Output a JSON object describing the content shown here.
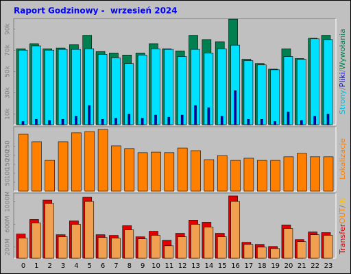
{
  "title": "Raport Godzinowy -  wrzesień 2024",
  "legend_separator": "/",
  "chart_data": [
    {
      "type": "bar",
      "ylim": [
        0,
        100000
      ],
      "yticks": [
        {
          "value": 10000,
          "label": "10k"
        },
        {
          "value": 30000,
          "label": "30k"
        },
        {
          "value": 50000,
          "label": "50k"
        },
        {
          "value": 70000,
          "label": "70k"
        },
        {
          "value": 90000,
          "label": "90k"
        }
      ],
      "series": [
        {
          "name": "Wywołania",
          "color": "#008050",
          "values": [
            71500,
            76200,
            71500,
            72200,
            75500,
            84100,
            68900,
            67500,
            65600,
            67500,
            76200,
            71500,
            69500,
            84100,
            80100,
            78100,
            99300,
            61600,
            57600,
            52300,
            71500,
            62300,
            81400,
            84100
          ]
        },
        {
          "name": "Pliki",
          "color": "#00e0ff",
          "values": [
            70200,
            74200,
            70200,
            70900,
            70900,
            71500,
            66200,
            62900,
            57600,
            65600,
            71500,
            70900,
            64200,
            70900,
            67500,
            71500,
            74800,
            60300,
            56300,
            51700,
            64200,
            61600,
            80800,
            80100
          ]
        },
        {
          "name": "Strony",
          "color": "#0000c0",
          "values": [
            3000,
            5000,
            4000,
            5000,
            8000,
            18000,
            5000,
            6000,
            10000,
            6000,
            9000,
            7000,
            9000,
            18000,
            16000,
            8000,
            32000,
            5000,
            5000,
            3000,
            12000,
            4000,
            8000,
            10000
          ]
        }
      ]
    },
    {
      "type": "bar",
      "ylim": [
        0,
        360
      ],
      "yticks": [
        50,
        100,
        150,
        200,
        250
      ],
      "series": [
        {
          "name": "Lokalizacje",
          "color": "#ff8000",
          "values": [
            318,
            276,
            172,
            276,
            326,
            333,
            345,
            253,
            238,
            215,
            218,
            215,
            241,
            226,
            176,
            199,
            172,
            184,
            172,
            172,
            192,
            211,
            192,
            192
          ]
        }
      ]
    },
    {
      "type": "bar",
      "ylim": [
        0,
        1150
      ],
      "yticks": [
        {
          "value": 200,
          "label": "200M"
        },
        {
          "value": 600,
          "label": "600M"
        },
        {
          "value": 1000,
          "label": "1000M"
        }
      ],
      "axis_label": "Transfer",
      "categories": [
        0,
        1,
        2,
        3,
        4,
        5,
        6,
        7,
        8,
        9,
        10,
        11,
        12,
        13,
        14,
        15,
        16,
        17,
        18,
        19,
        20,
        21,
        22,
        23
      ],
      "series": [
        {
          "name": "IN",
          "color": "#e00000",
          "values": [
            428,
            685,
            1028,
            416,
            661,
            1077,
            416,
            404,
            575,
            379,
            477,
            318,
            441,
            673,
            636,
            441,
            1102,
            282,
            245,
            208,
            588,
            330,
            465,
            453
          ]
        },
        {
          "name": "OUT",
          "color": "#f0a050",
          "values": [
            355,
            624,
            967,
            379,
            600,
            1004,
            367,
            355,
            502,
            343,
            404,
            220,
            379,
            600,
            551,
            379,
            1004,
            245,
            196,
            171,
            526,
            294,
            416,
            404
          ]
        }
      ]
    }
  ]
}
